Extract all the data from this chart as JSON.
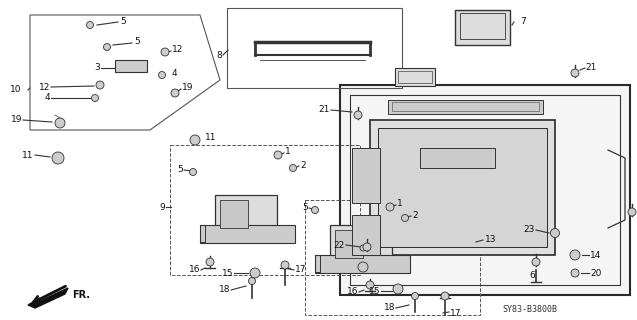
{
  "bg_color": "#ffffff",
  "diagram_code": "SY83-B3800B",
  "line_color": "#333333",
  "part_fill": "#e8e8e8",
  "part_fill2": "#d0d0d0"
}
